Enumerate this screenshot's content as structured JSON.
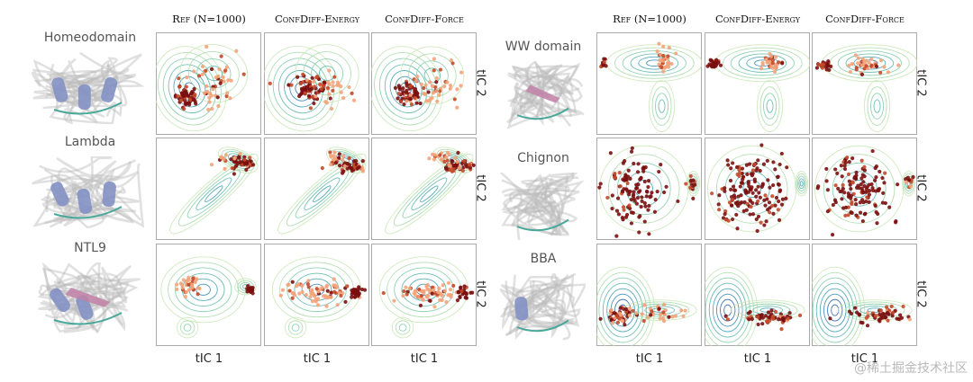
{
  "left": {
    "columns": [
      "Ref (N=1000)",
      "ConfDiff-Energy",
      "ConfDiff-Force"
    ],
    "proteins": [
      "Homeodomain",
      "Lambda",
      "NTL9"
    ],
    "xlabel": "tIC 1",
    "ylabel": "tIC 2"
  },
  "right": {
    "columns": [
      "Ref (N=1000)",
      "ConfDiff-Energy",
      "ConfDiff-Force"
    ],
    "proteins": [
      "WW domain",
      "Chignon",
      "BBA"
    ],
    "xlabel": "tIC 1",
    "ylabel": "tIC 2"
  },
  "colors": {
    "contour_outer": "#b9e0a8",
    "contour_mid": "#5bb7a8",
    "contour_inner": "#2b6fb0",
    "sample_light": "#f4a37a",
    "sample_dark": "#7b0f0f",
    "helix": "#8391c4",
    "strand": "#c281a8",
    "panel_border": "#aaaaaa"
  },
  "watermark": "@稀土掘金技术社区"
}
